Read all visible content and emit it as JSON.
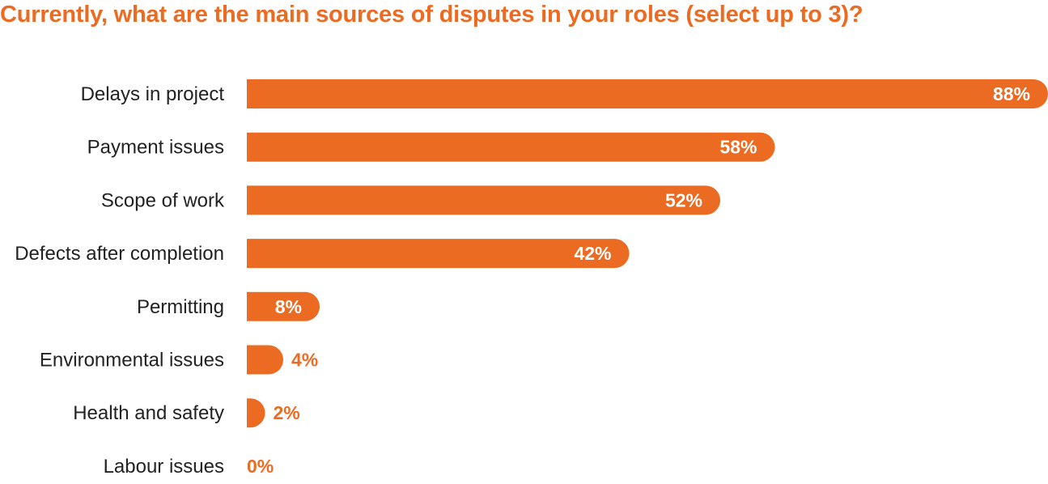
{
  "chart_data": {
    "type": "bar",
    "orientation": "horizontal",
    "title": "Currently, what are the main sources of disputes in your roles (select up to 3)?",
    "categories": [
      "Delays in project",
      "Payment issues",
      "Scope of work",
      "Defects after completion",
      "Permitting",
      "Environmental issues",
      "Health and safety",
      "Labour issues"
    ],
    "values": [
      88,
      58,
      52,
      42,
      8,
      4,
      2,
      0
    ],
    "value_labels": [
      "88%",
      "58%",
      "52%",
      "42%",
      "8%",
      "4%",
      "2%",
      "0%"
    ],
    "unit": "%",
    "xlim": [
      0,
      88
    ],
    "grid": false,
    "legend": "none",
    "bar_color": "#ec6b23",
    "label_inside_color": "#ffffff",
    "label_outside_color": "#ec6b23",
    "category_label_color": "#222222"
  }
}
